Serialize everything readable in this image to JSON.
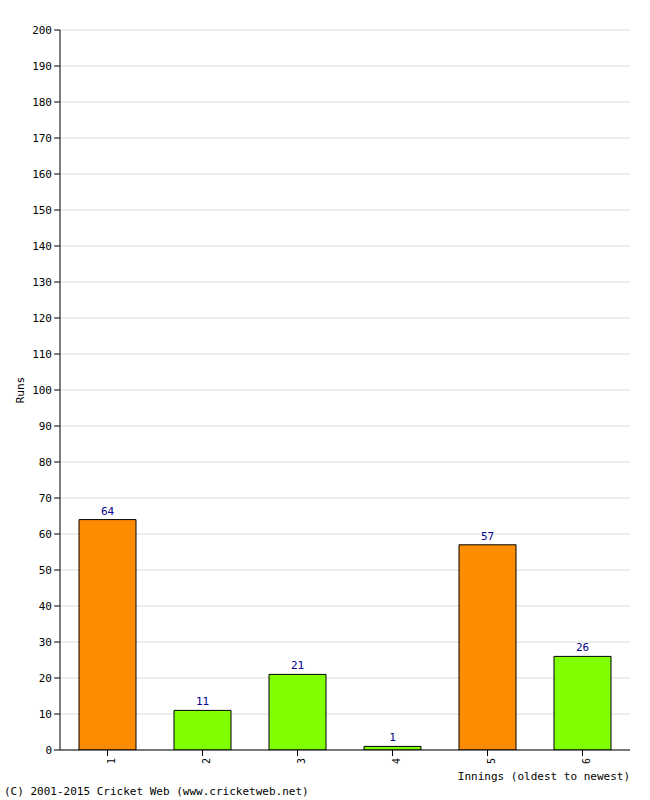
{
  "chart_data": {
    "type": "bar",
    "categories": [
      "1",
      "2",
      "3",
      "4",
      "5",
      "6"
    ],
    "values": [
      64,
      11,
      21,
      1,
      57,
      26
    ],
    "colors": [
      "#ff8c00",
      "#7fff00",
      "#7fff00",
      "#7fff00",
      "#ff8c00",
      "#7fff00"
    ],
    "ylim": [
      0,
      200
    ],
    "yticks": [
      0,
      10,
      20,
      30,
      40,
      50,
      60,
      70,
      80,
      90,
      100,
      110,
      120,
      130,
      140,
      150,
      160,
      170,
      180,
      190,
      200
    ],
    "x_label": "Innings (oldest to newest)",
    "y_label": "Runs",
    "annotations": [
      "(C) 2001-2015 Cricket Web (www.cricketweb.net)"
    ],
    "data_labels": true,
    "grid": true
  }
}
